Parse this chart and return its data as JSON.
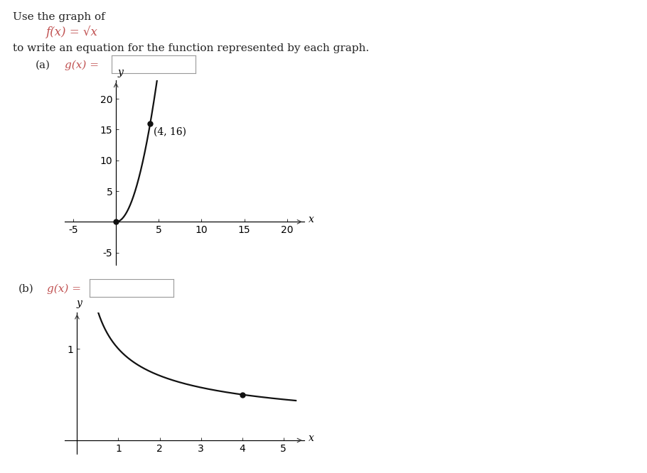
{
  "title_line1": "Use the graph of",
  "title_line2": "f(x) = √x",
  "title_line3": "to write an equation for the function represented by each graph.",
  "label_a": "(a)",
  "label_b": "(b)",
  "label_gx": "g(x) =",
  "text_color_red": "#c05050",
  "text_color_black": "#222222",
  "graph_a": {
    "xlim": [
      -6,
      22
    ],
    "ylim": [
      -7,
      23
    ],
    "xticks": [
      -5,
      0,
      5,
      10,
      15,
      20
    ],
    "yticks": [
      -5,
      0,
      5,
      10,
      15,
      20
    ],
    "xlabel": "x",
    "ylabel": "y",
    "point": [
      4,
      16
    ],
    "point_label": "(4, 16)",
    "x_start": 0,
    "x_end": 4.8
  },
  "graph_b": {
    "xlim": [
      -0.3,
      5.5
    ],
    "ylim": [
      -0.15,
      1.4
    ],
    "xticks": [
      0,
      1,
      2,
      3,
      4,
      5
    ],
    "yticks": [
      0,
      1
    ],
    "xlabel": "x",
    "ylabel": "y",
    "point": [
      4,
      0.5
    ],
    "x_start": 0.05,
    "x_end": 5.3
  },
  "bg_color": "#ffffff",
  "curve_color": "#111111",
  "axis_color": "#333333",
  "tick_color": "#333333",
  "font_size_text": 11,
  "font_size_axis_label": 10,
  "font_size_tick": 9,
  "font_size_annotation": 10
}
